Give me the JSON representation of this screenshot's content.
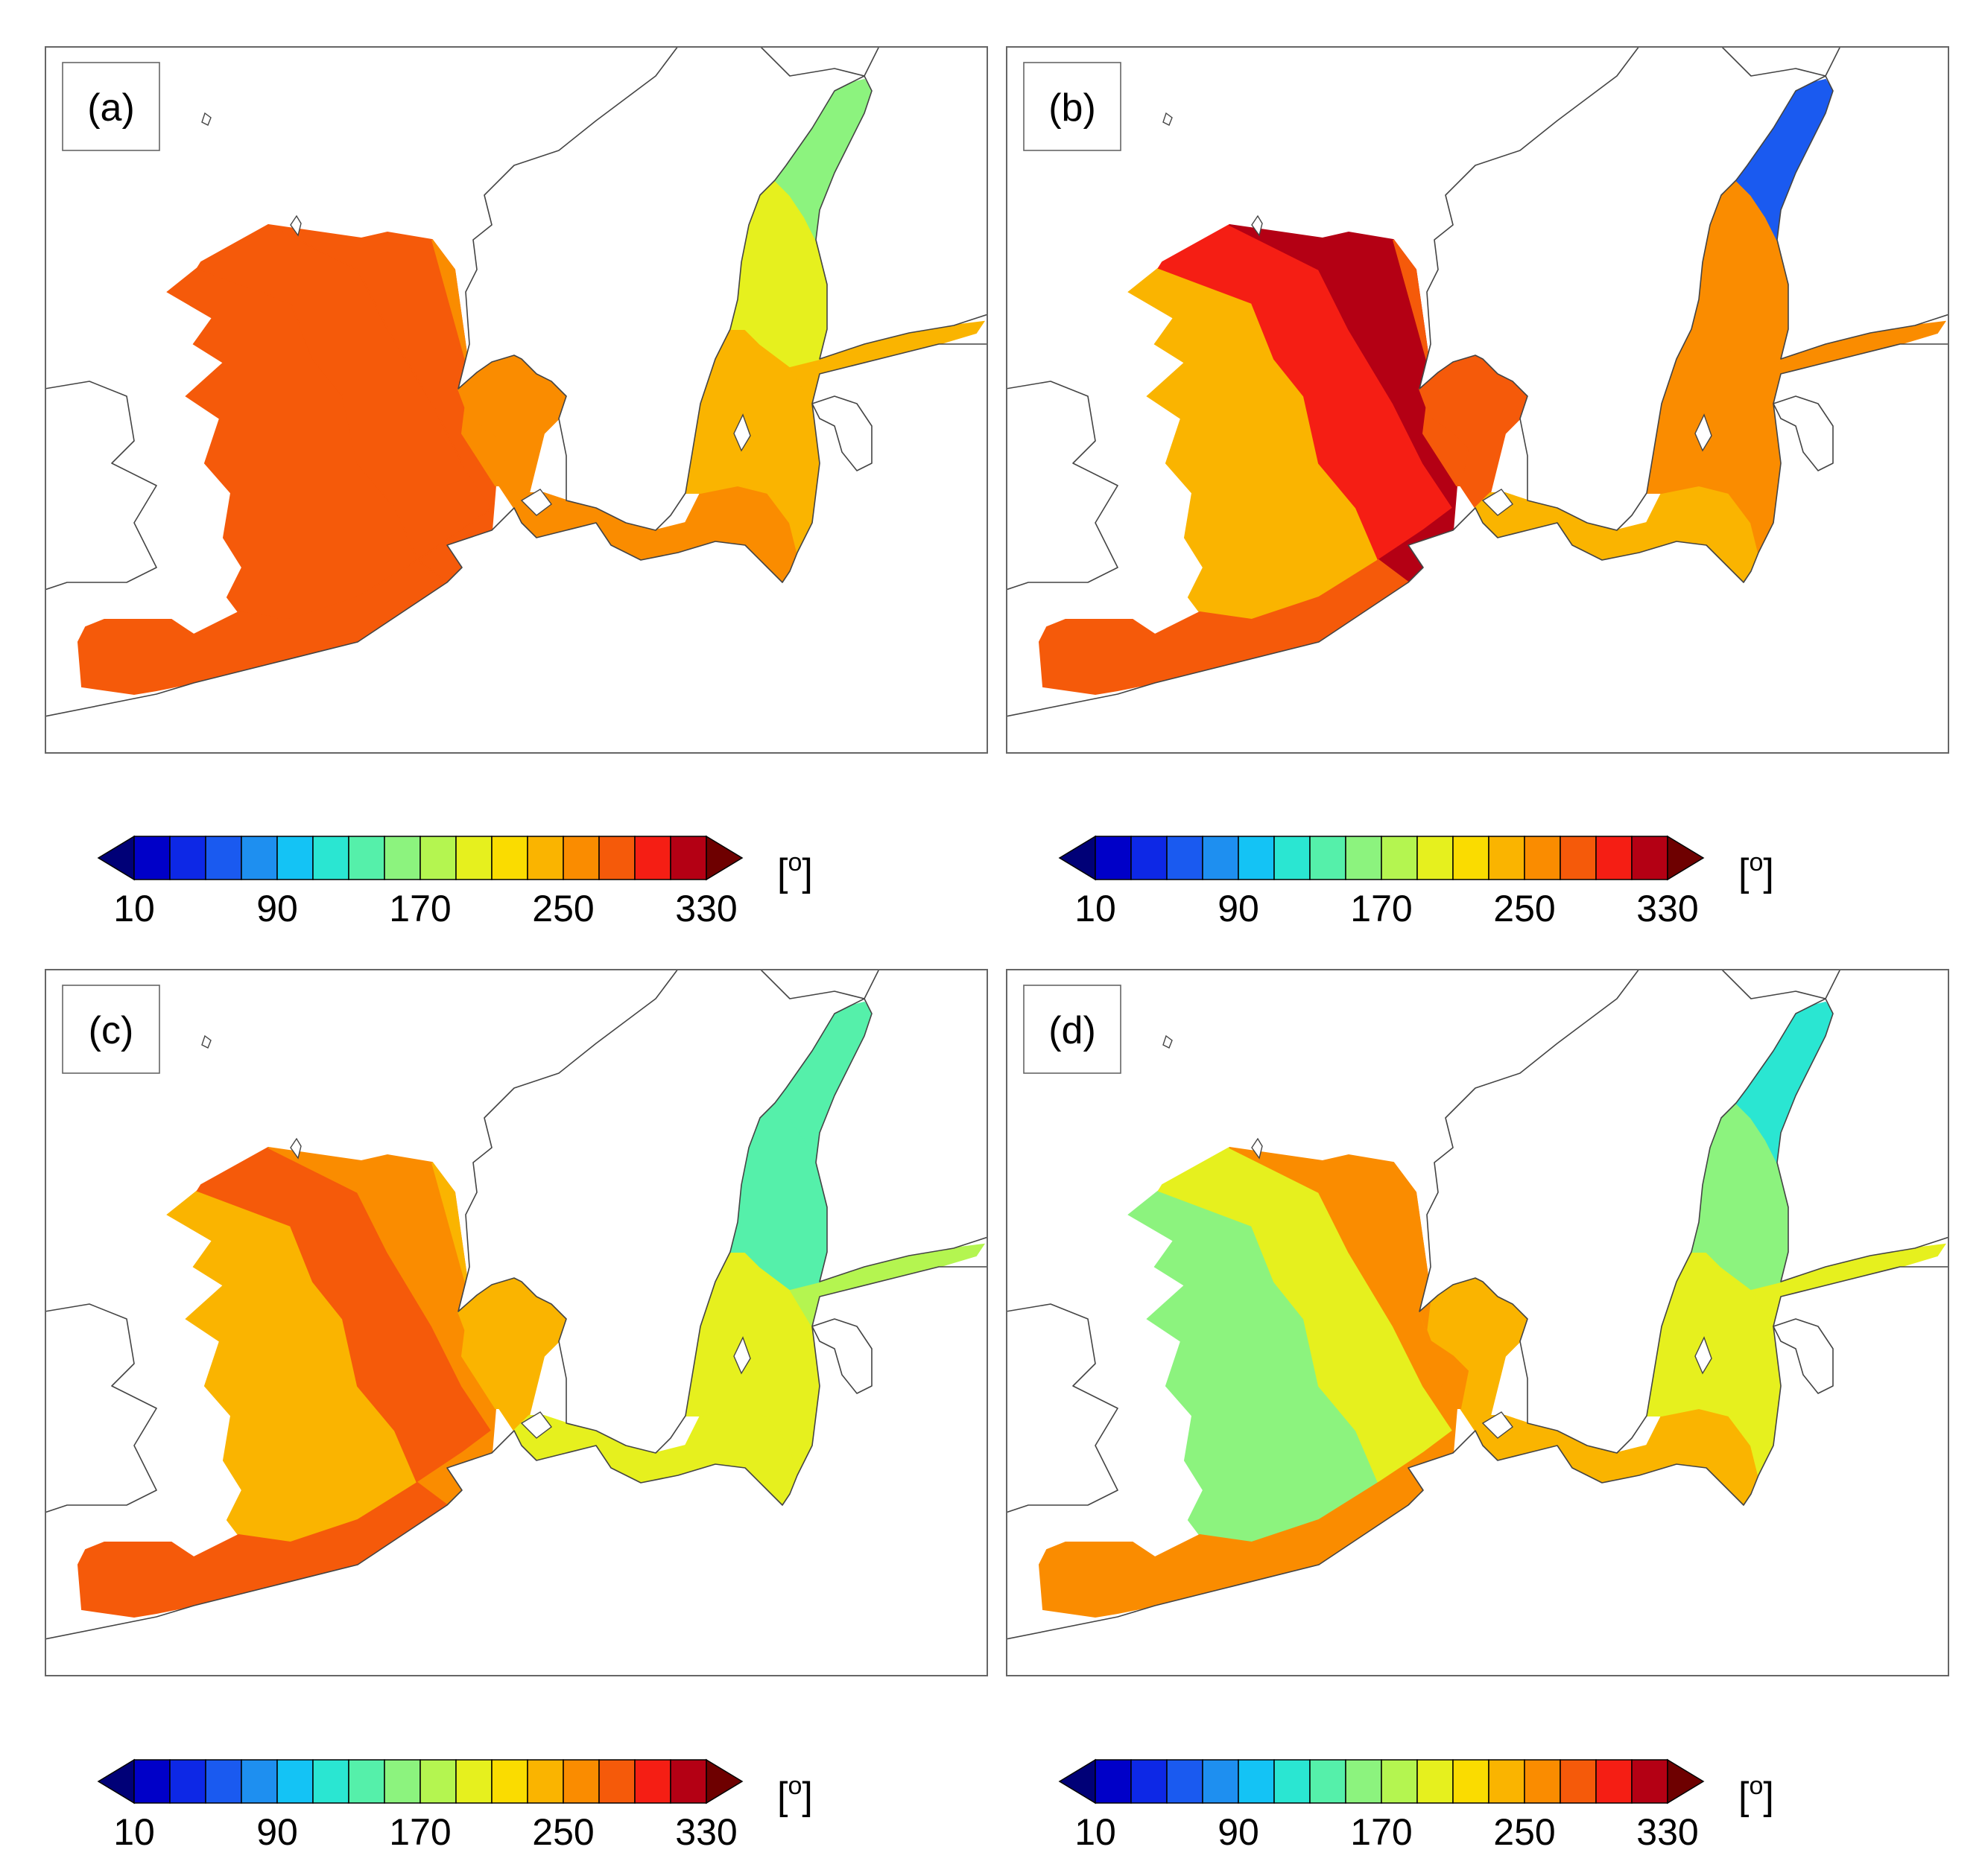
{
  "panels": [
    {
      "label": "(a)",
      "regions": {
        "ns_west": 270,
        "ns_center": 285,
        "ns_east": 270,
        "channel": 280,
        "kattegat": 265,
        "baltic_south": 250,
        "baltic_mid": 240,
        "bothnian_sea": 205,
        "bothnian_bay": 150,
        "gulf_finland": 230,
        "gulf_riga": 240,
        "skagerrak": 265
      }
    },
    {
      "label": "(b)",
      "regions": {
        "ns_west": 240,
        "ns_center": 305,
        "ns_east": 315,
        "channel": 280,
        "kattegat": 270,
        "baltic_south": 240,
        "baltic_mid": 255,
        "bothnian_sea": 265,
        "bothnian_bay": 50,
        "gulf_finland": 250,
        "gulf_riga": 270,
        "skagerrak": 275
      }
    },
    {
      "label": "(c)",
      "regions": {
        "ns_west": 230,
        "ns_center": 275,
        "ns_east": 255,
        "channel": 270,
        "kattegat": 235,
        "baltic_south": 200,
        "baltic_mid": 190,
        "bothnian_sea": 145,
        "bothnian_bay": 140,
        "gulf_finland": 185,
        "gulf_riga": 200,
        "skagerrak": 230
      }
    },
    {
      "label": "(d)",
      "regions": {
        "ns_west": 150,
        "ns_center": 205,
        "ns_east": 265,
        "channel": 255,
        "kattegat": 240,
        "baltic_south": 235,
        "baltic_mid": 200,
        "bothnian_sea": 150,
        "bothnian_bay": 120,
        "gulf_finland": 200,
        "gulf_riga": 260,
        "skagerrak": 250
      }
    }
  ],
  "colorbar": {
    "unit": "[o]",
    "unit_base": "[",
    "unit_sup": "o",
    "unit_close": "]",
    "ticks": [
      "10",
      "90",
      "170",
      "250",
      "330"
    ],
    "levels": [
      10,
      30,
      50,
      70,
      90,
      110,
      130,
      150,
      170,
      190,
      210,
      230,
      250,
      270,
      290,
      310,
      330
    ],
    "colors": [
      "#000077",
      "#0000c8",
      "#0d28e6",
      "#1a5af0",
      "#1e8ff0",
      "#14c3f5",
      "#2ae6d2",
      "#55f0aa",
      "#8cf37e",
      "#b4f550",
      "#e6f01e",
      "#fadc00",
      "#fab400",
      "#fa8c00",
      "#f55a0a",
      "#f51e14",
      "#b40014",
      "#6e0000"
    ]
  }
}
